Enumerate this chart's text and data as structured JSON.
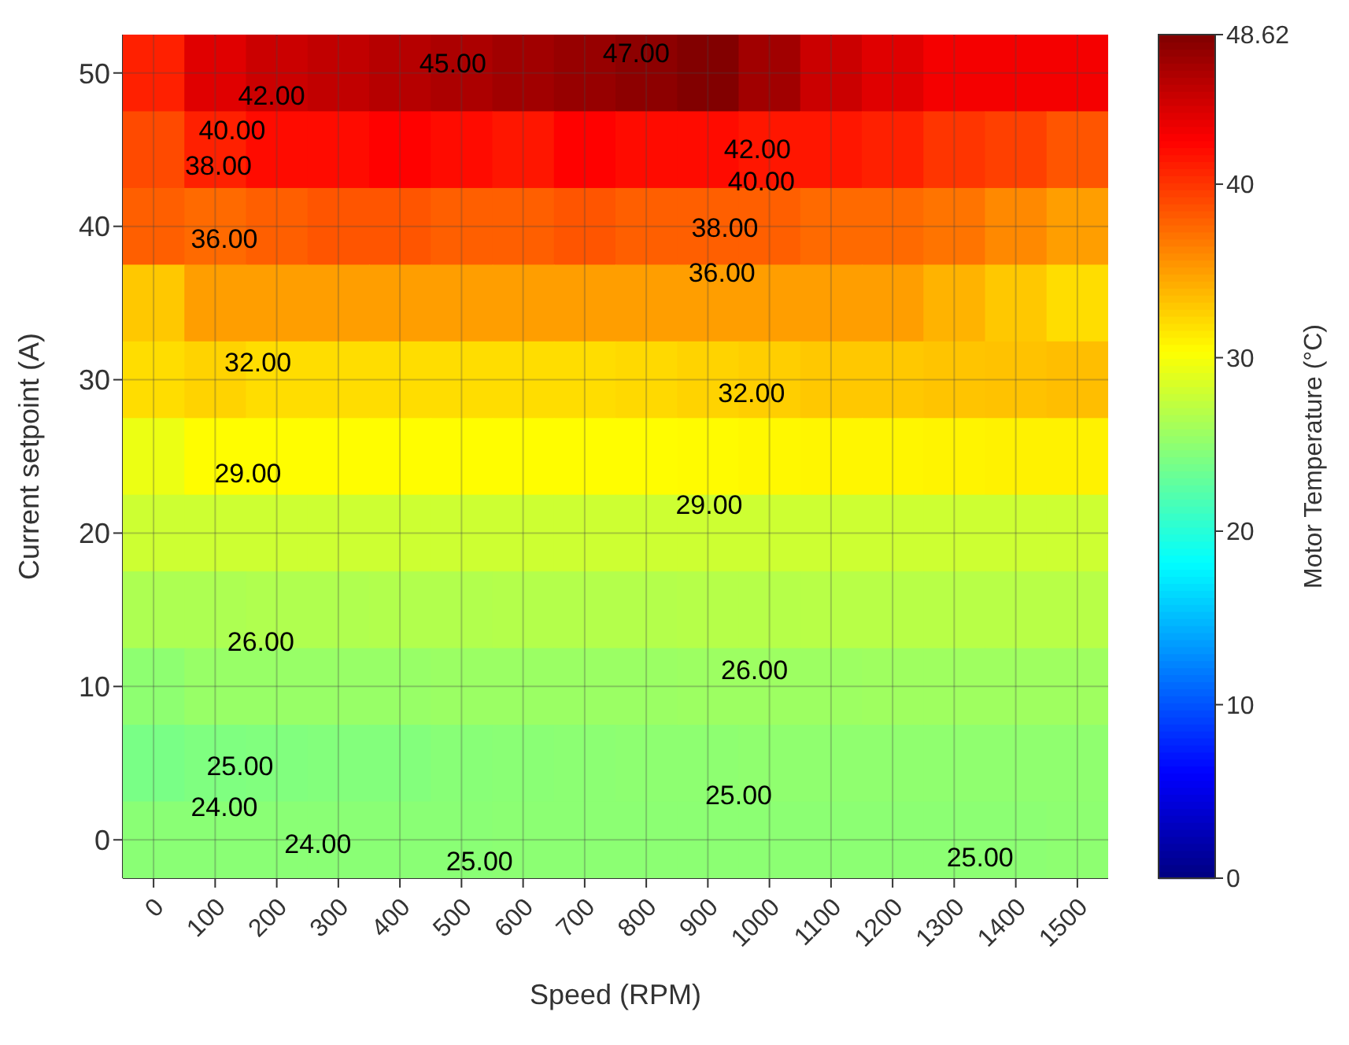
{
  "chart_data": {
    "type": "heatmap",
    "xlabel": "Speed (RPM)",
    "ylabel": "Current setpoint (A)",
    "clabel": "Motor Temperature (°C)",
    "categories": [
      "0",
      "100",
      "200",
      "300",
      "400",
      "500",
      "600",
      "700",
      "800",
      "900",
      "1000",
      "1100",
      "1200",
      "1300",
      "1400",
      "1500"
    ],
    "y_categories": [
      "50",
      null,
      "40",
      null,
      "30",
      null,
      "20",
      null,
      "10",
      null,
      "0"
    ],
    "cells": [
      [
        41,
        44,
        45,
        45.5,
        46,
        46.5,
        47,
        47.5,
        48,
        48.5,
        47,
        45,
        44,
        43,
        43,
        43
      ],
      [
        39,
        41,
        42,
        42,
        42.5,
        42,
        41.5,
        42.5,
        42,
        42,
        41.5,
        41.5,
        41,
        40,
        39.5,
        38.5
      ],
      [
        38,
        37.5,
        38,
        38.5,
        38.5,
        38,
        38,
        38.5,
        38,
        38,
        38,
        37.5,
        37.5,
        37,
        36,
        35
      ],
      [
        33,
        35,
        35,
        35,
        35,
        35,
        35,
        35,
        35,
        35,
        35,
        35,
        35,
        34,
        33,
        32
      ],
      [
        32,
        32.5,
        32,
        32,
        32,
        32,
        32,
        32,
        32.2,
        32.5,
        32.7,
        33,
        33,
        33.2,
        33.3,
        33.5
      ],
      [
        29.5,
        30.5,
        30.5,
        30.5,
        30.5,
        30.5,
        30.5,
        30.5,
        30.5,
        30.6,
        30.7,
        30.8,
        30.8,
        30.9,
        31,
        31
      ],
      [
        28,
        28,
        28,
        28,
        28,
        28,
        28,
        28,
        28,
        28,
        28,
        28,
        28,
        28,
        28,
        28
      ],
      [
        26.5,
        26.5,
        26.6,
        26.6,
        26.7,
        26.7,
        26.8,
        26.8,
        26.8,
        26.9,
        26.9,
        27,
        27,
        27,
        27,
        27
      ],
      [
        25,
        25.5,
        25.5,
        25.5,
        25.5,
        25.6,
        25.6,
        25.6,
        25.6,
        25.7,
        25.7,
        25.7,
        25.8,
        25.8,
        25.8,
        25.8
      ],
      [
        24,
        24.3,
        24.4,
        24.5,
        24.5,
        24.7,
        24.8,
        24.9,
        25,
        25,
        25.1,
        25.1,
        25.1,
        25.1,
        25.1,
        25.1
      ],
      [
        24.8,
        24.8,
        24.8,
        24.8,
        24.8,
        24.8,
        24.9,
        24.9,
        24.9,
        24.9,
        24.9,
        24.9,
        24.9,
        24.9,
        24.9,
        25
      ]
    ],
    "clim": [
      0,
      48.62
    ],
    "cticks": [
      0,
      10,
      20,
      30,
      40,
      {
        "value": 48.62,
        "label": "48.62"
      }
    ],
    "grid": true,
    "annotations": [
      "45.00",
      "47.00",
      "42.00",
      "42.00",
      "40.00",
      "40.00",
      "38.00",
      "38.00",
      "36.00",
      "36.00",
      "32.00",
      "32.00",
      "29.00",
      "29.00",
      "26.00",
      "26.00",
      "25.00",
      "25.00",
      "24.00",
      "24.00",
      "25.00",
      "25.00"
    ]
  }
}
